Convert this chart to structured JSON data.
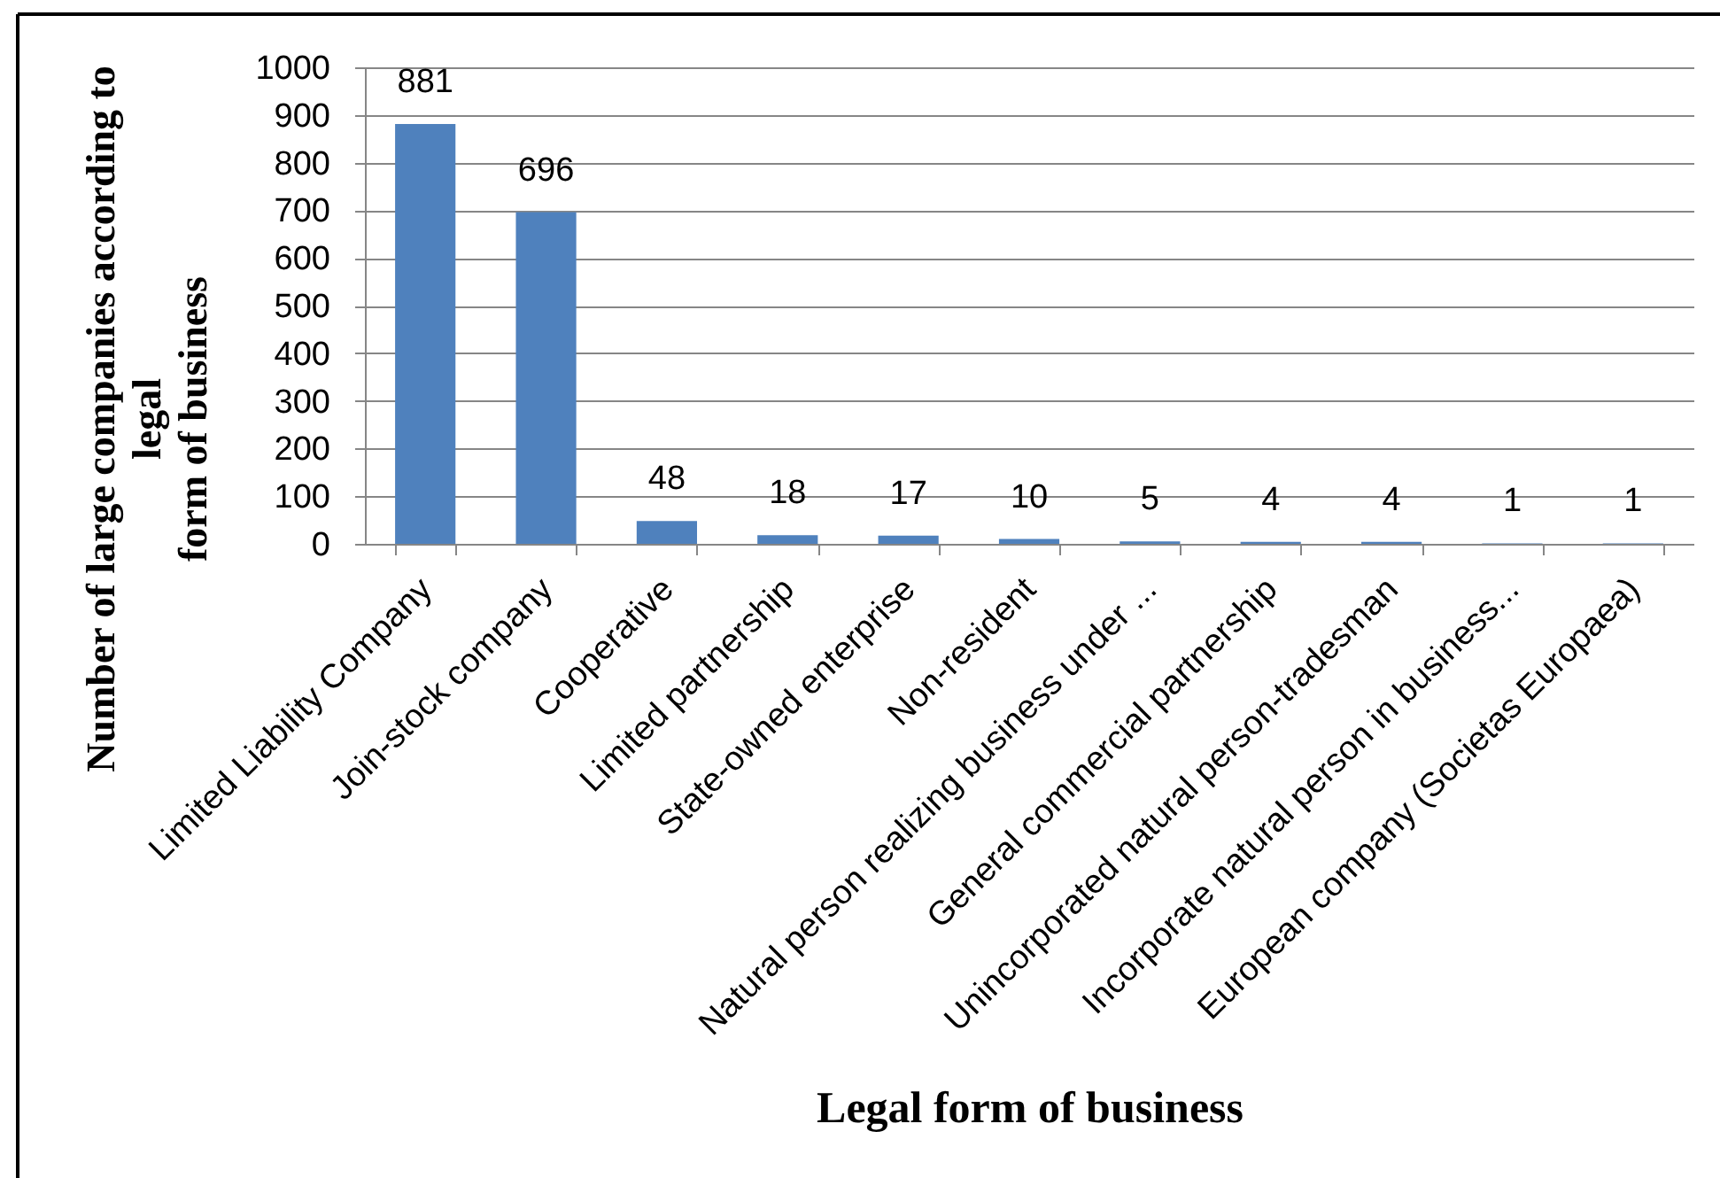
{
  "chart_data": {
    "type": "bar",
    "xlabel": "Legal form of business",
    "ylabel": "Number of large companies according to\nlegal\nform of business",
    "categories": [
      "Limited Liability Company",
      "Join-stock company",
      "Cooperative",
      "Limited partnership",
      "State-owned enterprise",
      "Non-resident",
      "Natural person realizing business under ...",
      "General commercial partnership",
      "Unincorporated natural person-tradesman",
      "Incorporate natural person in business...",
      "European company (Societas Europaea)"
    ],
    "values": [
      881,
      696,
      48,
      18,
      17,
      10,
      5,
      4,
      4,
      1,
      1
    ],
    "color": "#4f81bd",
    "ylim": [
      0,
      1000
    ],
    "yticks": [
      0,
      100,
      200,
      300,
      400,
      500,
      600,
      700,
      800,
      900,
      1000
    ],
    "grid": "y",
    "data_labels": true
  }
}
